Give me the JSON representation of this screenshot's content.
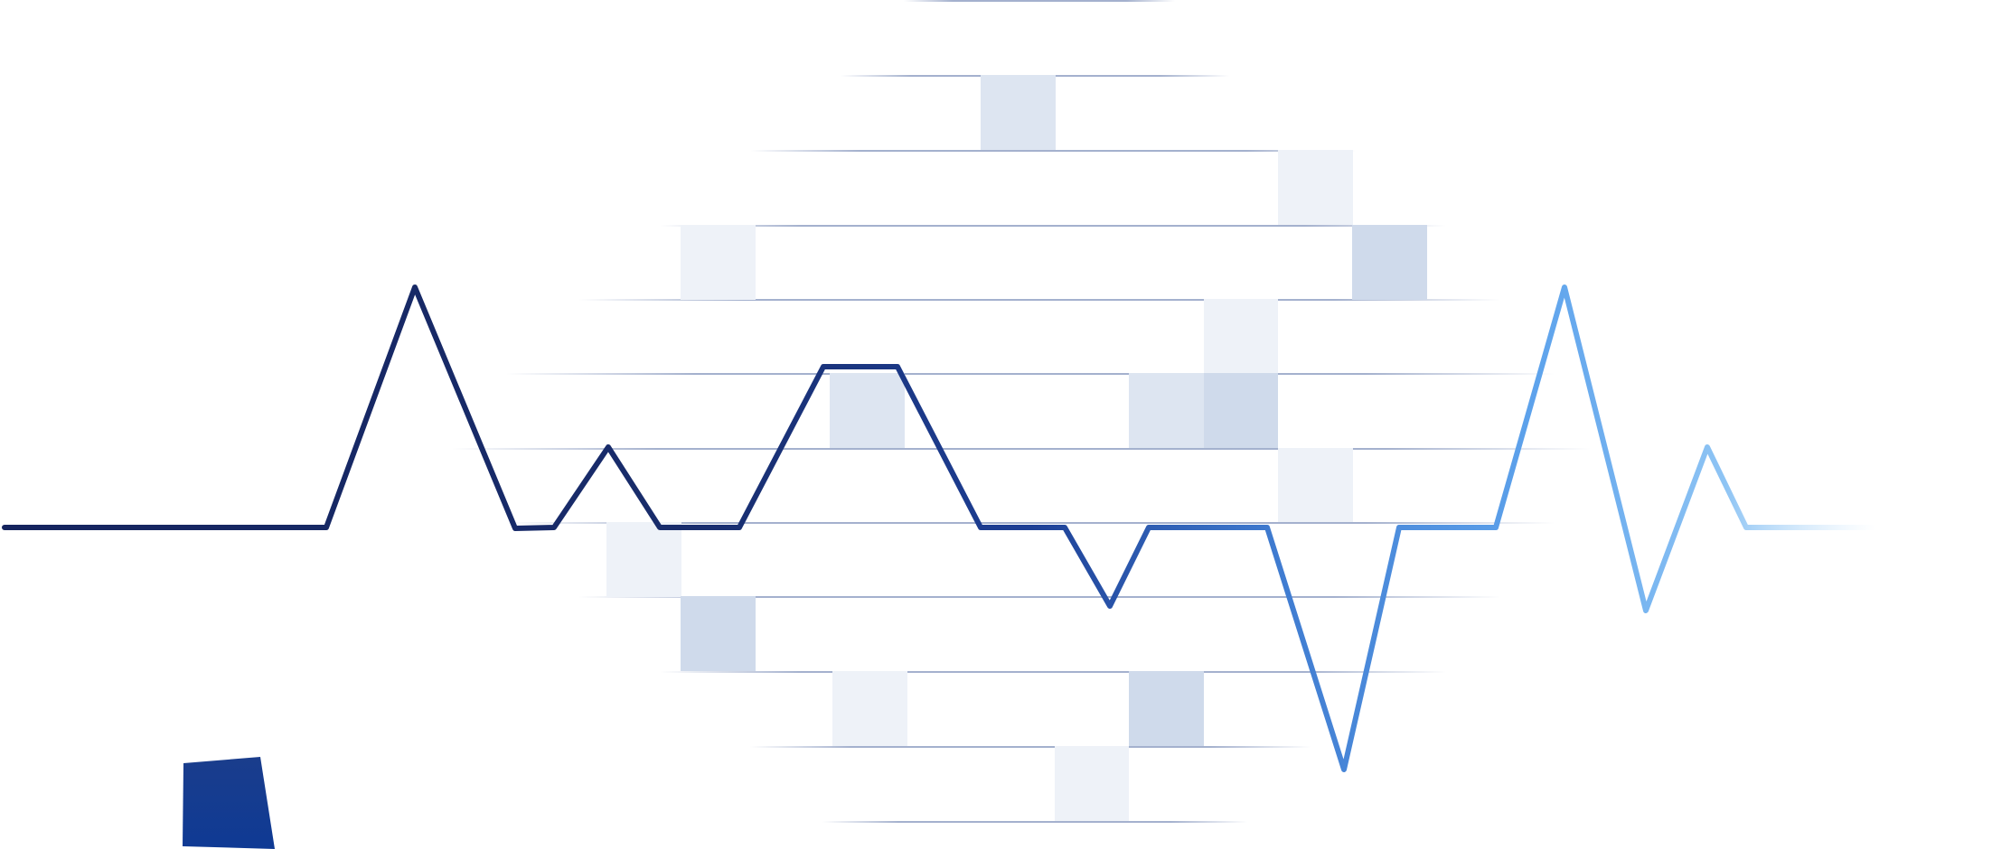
{
  "colors": {
    "background": "#ffffff",
    "grid_line": "#9aa8c8",
    "cell_light": "#eef2f8",
    "cell_medium": "#dde5f1",
    "cell_strong": "#cfdaeb",
    "line_dark": "#15245e",
    "line_mid": "#1d3f95",
    "line_bright": "#4a86d6",
    "line_light": "#8ec4f4",
    "marker_top": "#1a3d8c",
    "marker_bottom": "#0f3a94"
  },
  "icons": {
    "corner_marker": "blue-quadrilateral"
  }
}
